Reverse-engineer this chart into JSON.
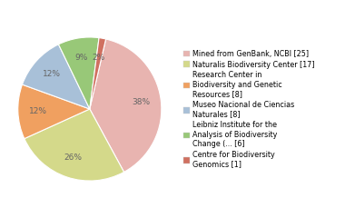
{
  "legend_labels": [
    "Mined from GenBank, NCBI [25]",
    "Naturalis Biodiversity Center [17]",
    "Research Center in\nBiodiversity and Genetic\nResources [8]",
    "Museo Nacional de Ciencias\nNaturales [8]",
    "Leibniz Institute for the\nAnalysis of Biodiversity\nChange (... [6]",
    "Centre for Biodiversity\nGenomics [1]"
  ],
  "values": [
    25,
    17,
    8,
    8,
    6,
    1
  ],
  "colors": [
    "#e8b4b0",
    "#d4d98a",
    "#f0a060",
    "#a8c0d8",
    "#98c878",
    "#d07060"
  ],
  "startangle": 77,
  "background_color": "#ffffff",
  "pct_color": "#666666",
  "pct_fontsize": 6.5,
  "legend_fontsize": 5.8
}
